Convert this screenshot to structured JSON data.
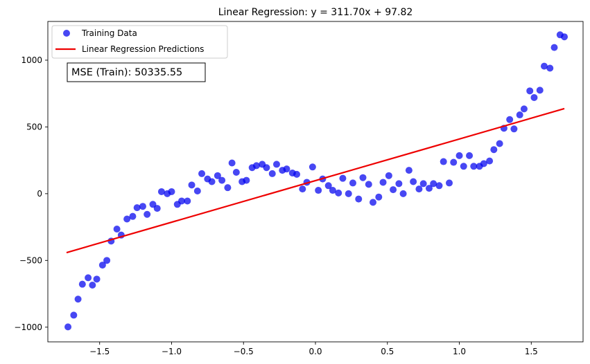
{
  "chart_data": {
    "type": "scatter",
    "title": "Linear Regression: y = 311.70x + 97.82",
    "xlabel": "",
    "ylabel": "",
    "xlim": [
      -1.86,
      1.86
    ],
    "ylim": [
      -1110,
      1290
    ],
    "x_ticks": [
      -1.5,
      -1.0,
      -0.5,
      0.0,
      0.5,
      1.0,
      1.5
    ],
    "x_tick_labels": [
      "−1.5",
      "−1.0",
      "−0.5",
      "0.0",
      "0.5",
      "1.0",
      "1.5"
    ],
    "y_ticks": [
      -1000,
      -500,
      0,
      500,
      1000
    ],
    "y_tick_labels": [
      "−1000",
      "−500",
      "0",
      "500",
      "1000"
    ],
    "grid": false,
    "legend": {
      "placement": "top-left"
    },
    "annotation": {
      "text": "MSE (Train): 50335.55",
      "placement": "top-left"
    },
    "series": [
      {
        "name": "Training Data",
        "kind": "scatter",
        "color": "#0000ee",
        "points": [
          [
            -1.72,
            -998
          ],
          [
            -1.68,
            -910
          ],
          [
            -1.65,
            -790
          ],
          [
            -1.62,
            -678
          ],
          [
            -1.58,
            -630
          ],
          [
            -1.55,
            -685
          ],
          [
            -1.52,
            -640
          ],
          [
            -1.48,
            -535
          ],
          [
            -1.45,
            -500
          ],
          [
            -1.42,
            -355
          ],
          [
            -1.38,
            -265
          ],
          [
            -1.35,
            -310
          ],
          [
            -1.31,
            -190
          ],
          [
            -1.27,
            -170
          ],
          [
            -1.24,
            -105
          ],
          [
            -1.2,
            -95
          ],
          [
            -1.17,
            -155
          ],
          [
            -1.13,
            -80
          ],
          [
            -1.1,
            -110
          ],
          [
            -1.07,
            15
          ],
          [
            -1.03,
            0
          ],
          [
            -1.0,
            15
          ],
          [
            -0.96,
            -80
          ],
          [
            -0.93,
            -55
          ],
          [
            -0.89,
            -55
          ],
          [
            -0.86,
            65
          ],
          [
            -0.82,
            20
          ],
          [
            -0.79,
            150
          ],
          [
            -0.75,
            110
          ],
          [
            -0.72,
            90
          ],
          [
            -0.68,
            135
          ],
          [
            -0.65,
            100
          ],
          [
            -0.61,
            45
          ],
          [
            -0.58,
            230
          ],
          [
            -0.55,
            160
          ],
          [
            -0.51,
            90
          ],
          [
            -0.48,
            100
          ],
          [
            -0.44,
            195
          ],
          [
            -0.41,
            210
          ],
          [
            -0.37,
            220
          ],
          [
            -0.34,
            195
          ],
          [
            -0.3,
            150
          ],
          [
            -0.27,
            220
          ],
          [
            -0.23,
            175
          ],
          [
            -0.2,
            185
          ],
          [
            -0.16,
            155
          ],
          [
            -0.13,
            145
          ],
          [
            -0.09,
            35
          ],
          [
            -0.06,
            85
          ],
          [
            -0.02,
            200
          ],
          [
            0.02,
            25
          ],
          [
            0.05,
            110
          ],
          [
            0.09,
            60
          ],
          [
            0.12,
            25
          ],
          [
            0.16,
            5
          ],
          [
            0.19,
            115
          ],
          [
            0.23,
            0
          ],
          [
            0.26,
            80
          ],
          [
            0.3,
            -40
          ],
          [
            0.33,
            120
          ],
          [
            0.37,
            70
          ],
          [
            0.4,
            -65
          ],
          [
            0.44,
            -25
          ],
          [
            0.47,
            85
          ],
          [
            0.51,
            135
          ],
          [
            0.54,
            30
          ],
          [
            0.58,
            75
          ],
          [
            0.61,
            0
          ],
          [
            0.65,
            175
          ],
          [
            0.68,
            90
          ],
          [
            0.72,
            35
          ],
          [
            0.75,
            75
          ],
          [
            0.79,
            40
          ],
          [
            0.82,
            75
          ],
          [
            0.86,
            60
          ],
          [
            0.89,
            240
          ],
          [
            0.93,
            80
          ],
          [
            0.96,
            235
          ],
          [
            1.0,
            285
          ],
          [
            1.03,
            205
          ],
          [
            1.07,
            285
          ],
          [
            1.1,
            205
          ],
          [
            1.14,
            205
          ],
          [
            1.17,
            225
          ],
          [
            1.21,
            245
          ],
          [
            1.24,
            330
          ],
          [
            1.28,
            375
          ],
          [
            1.31,
            490
          ],
          [
            1.35,
            555
          ],
          [
            1.38,
            485
          ],
          [
            1.42,
            590
          ],
          [
            1.45,
            635
          ],
          [
            1.49,
            770
          ],
          [
            1.52,
            720
          ],
          [
            1.56,
            775
          ],
          [
            1.59,
            955
          ],
          [
            1.63,
            940
          ],
          [
            1.66,
            1095
          ],
          [
            1.7,
            1190
          ],
          [
            1.73,
            1175
          ]
        ]
      },
      {
        "name": "Linear Regression Predictions",
        "kind": "line",
        "color": "#ee0000",
        "slope": 311.7,
        "intercept": 97.82,
        "x_range": [
          -1.73,
          1.73
        ]
      }
    ]
  }
}
